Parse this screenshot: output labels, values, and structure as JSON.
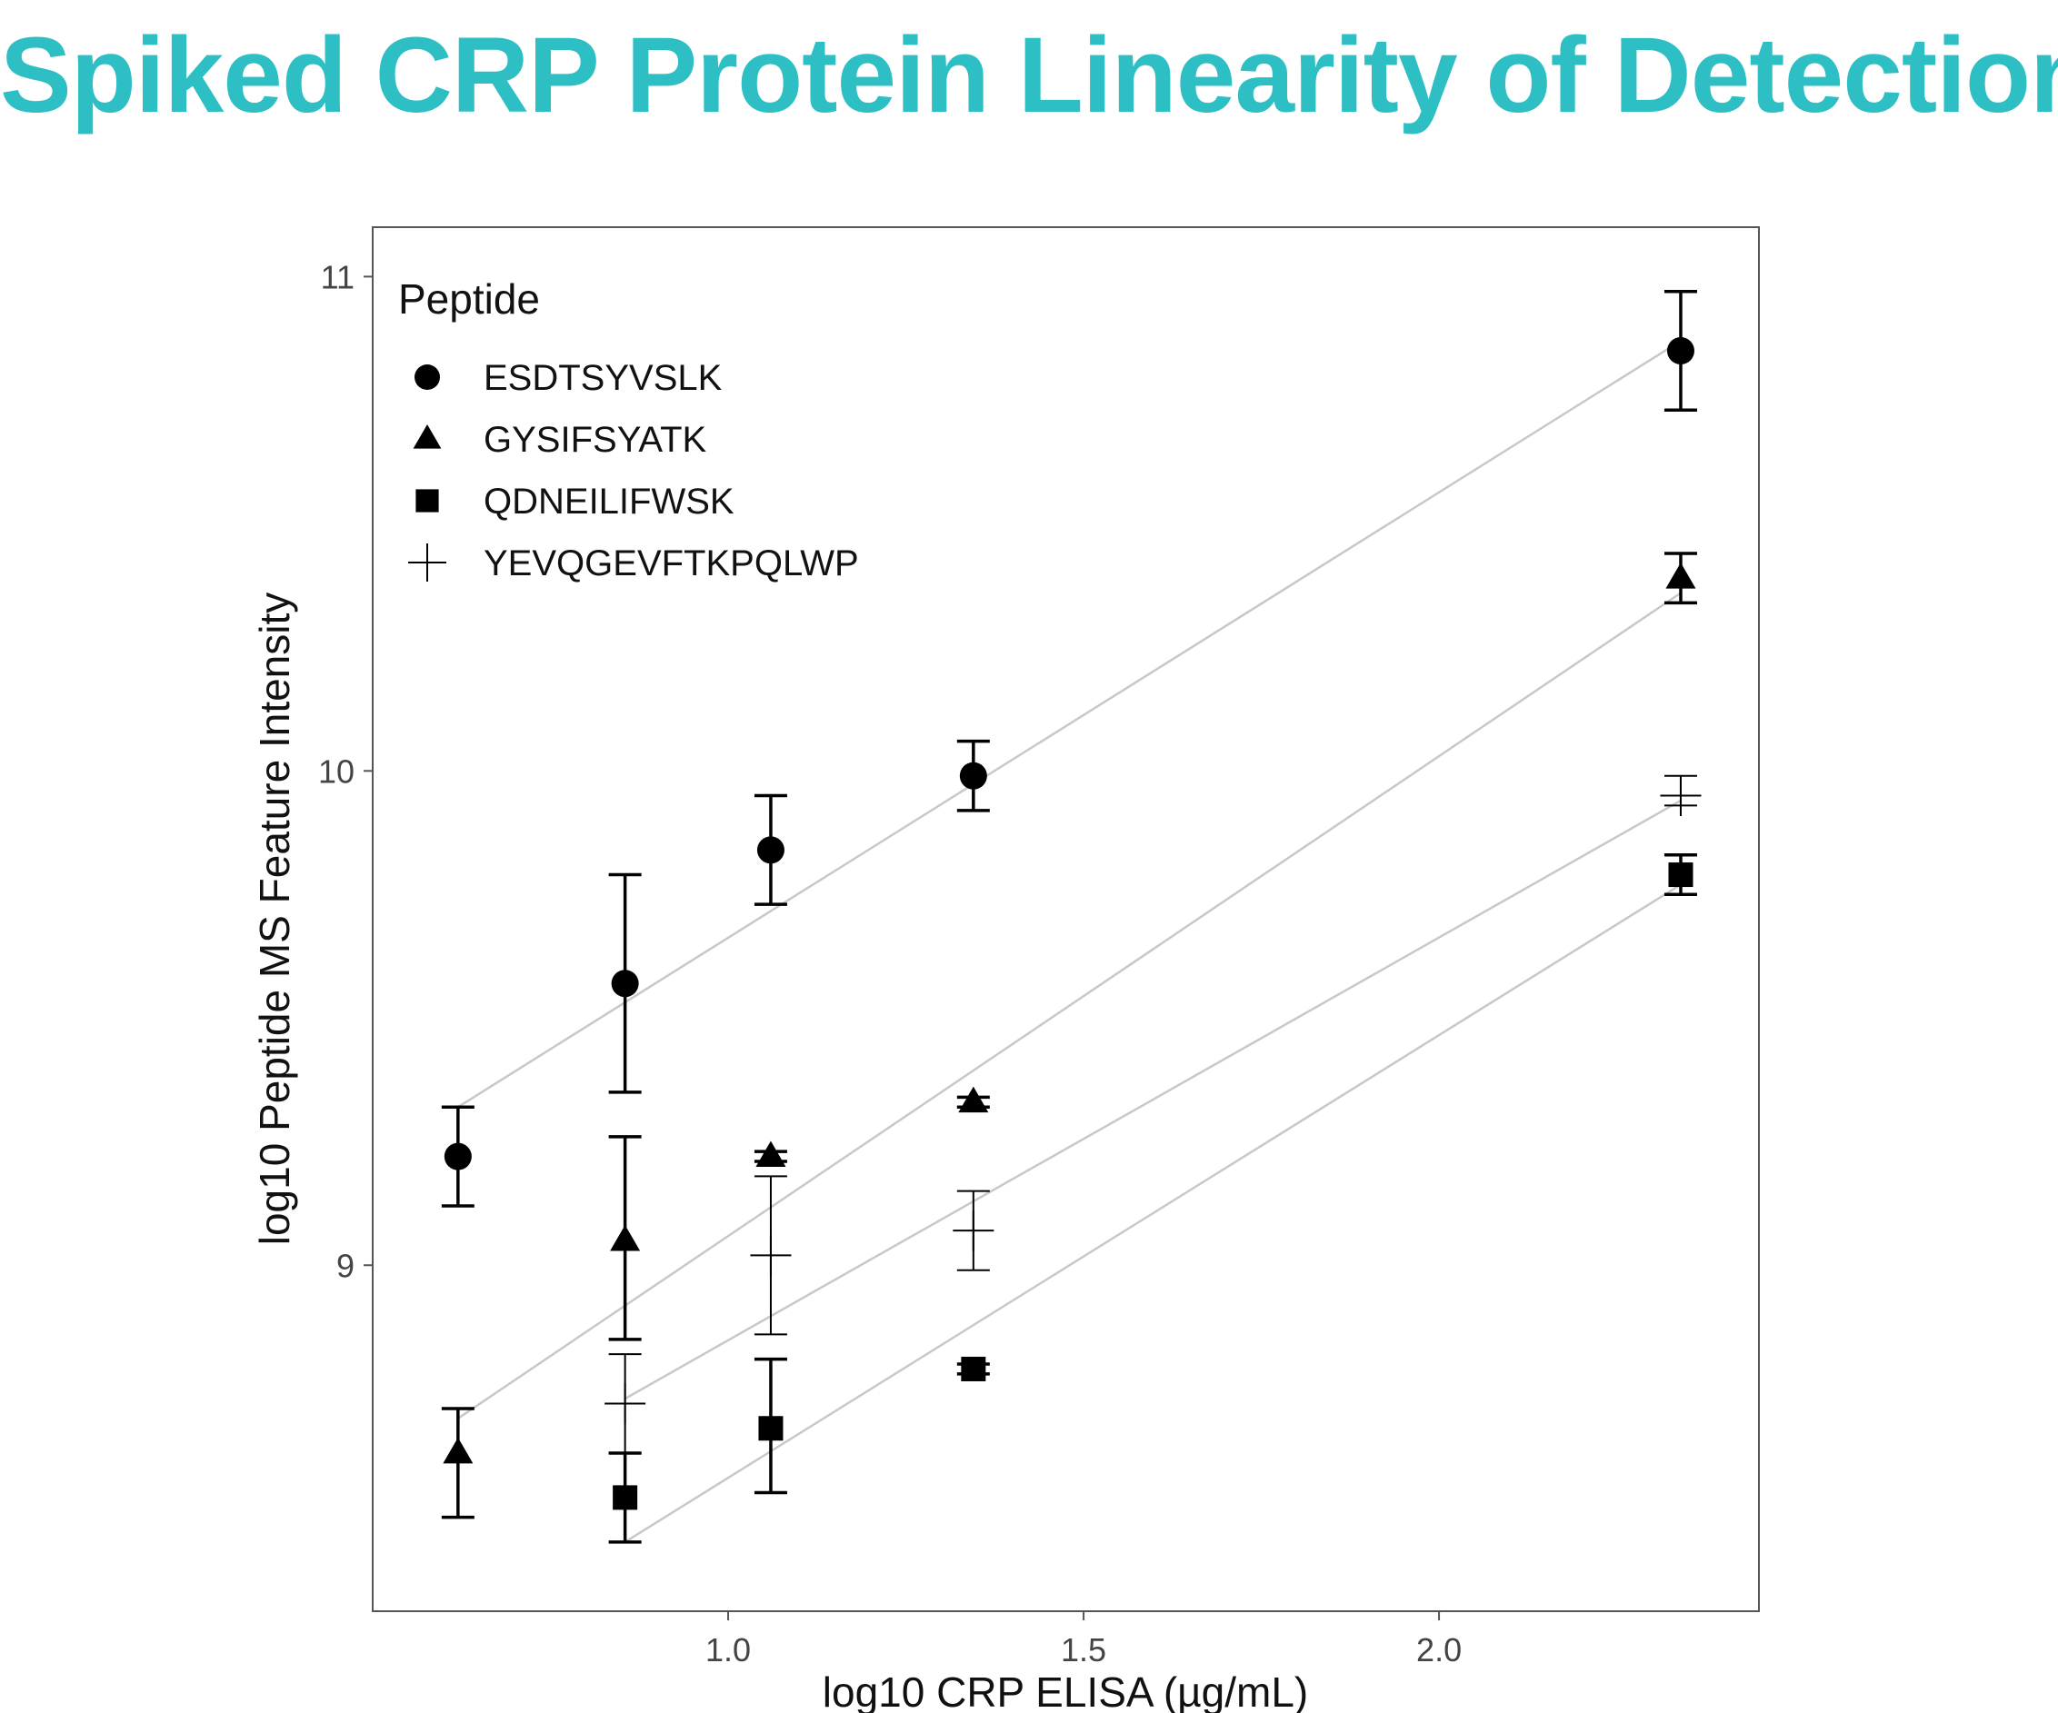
{
  "slide": {
    "title": "Spiked CRP Protein Linearity of Detection",
    "title_color": "#2ebfc5"
  },
  "chart_data": {
    "type": "scatter",
    "title": "",
    "xlabel": "log10 CRP ELISA (µg/mL)",
    "ylabel": "log10 Peptide MS Feature Intensity",
    "xlim": [
      0.5,
      2.45
    ],
    "ylim": [
      8.3,
      11.1
    ],
    "x_ticks": [
      1.0,
      1.5,
      2.0
    ],
    "x_tick_labels": [
      "1.0",
      "1.5",
      "2.0"
    ],
    "y_ticks": [
      9,
      10,
      11
    ],
    "y_tick_labels": [
      "9",
      "10",
      "11"
    ],
    "grid": false,
    "legend": {
      "title": "Peptide",
      "placement": "top-left"
    },
    "series": [
      {
        "name": "ESDTSYVSLK",
        "marker": "circle",
        "x": [
          0.62,
          0.855,
          1.06,
          1.345,
          2.34
        ],
        "y": [
          9.22,
          9.57,
          9.84,
          9.99,
          10.85
        ],
        "err_low": [
          9.12,
          9.35,
          9.73,
          9.92,
          10.73
        ],
        "err_high": [
          9.32,
          9.79,
          9.95,
          10.06,
          10.97
        ],
        "fit": [
          [
            0.62,
            9.32
          ],
          [
            2.34,
            10.87
          ]
        ]
      },
      {
        "name": "GYSIFSYATK",
        "marker": "triangle",
        "x": [
          0.62,
          0.855,
          1.06,
          1.345,
          2.34
        ],
        "y": [
          8.62,
          9.05,
          9.22,
          9.33,
          10.39
        ],
        "err_low": [
          8.49,
          8.85,
          9.21,
          9.32,
          10.34
        ],
        "err_high": [
          8.71,
          9.26,
          9.23,
          9.34,
          10.44
        ],
        "fit": [
          [
            0.62,
            8.69
          ],
          [
            2.34,
            10.36
          ]
        ]
      },
      {
        "name": "QDNEILIFWSK",
        "marker": "square",
        "x": [
          0.855,
          1.06,
          1.345,
          2.34
        ],
        "y": [
          8.53,
          8.67,
          8.79,
          9.79
        ],
        "err_low": [
          8.44,
          8.54,
          8.78,
          9.75
        ],
        "err_high": [
          8.62,
          8.81,
          8.8,
          9.83
        ],
        "fit": [
          [
            0.855,
            8.44
          ],
          [
            2.34,
            9.77
          ]
        ]
      },
      {
        "name": "YEVQGEVFTKPQLWP",
        "marker": "plus",
        "x": [
          0.855,
          1.06,
          1.345,
          2.34
        ],
        "y": [
          8.72,
          9.02,
          9.07,
          9.95
        ],
        "err_low": [
          8.62,
          8.86,
          8.99,
          9.93
        ],
        "err_high": [
          8.82,
          9.18,
          9.15,
          9.99
        ],
        "fit": [
          [
            0.855,
            8.73
          ],
          [
            2.34,
            9.94
          ]
        ]
      }
    ]
  }
}
